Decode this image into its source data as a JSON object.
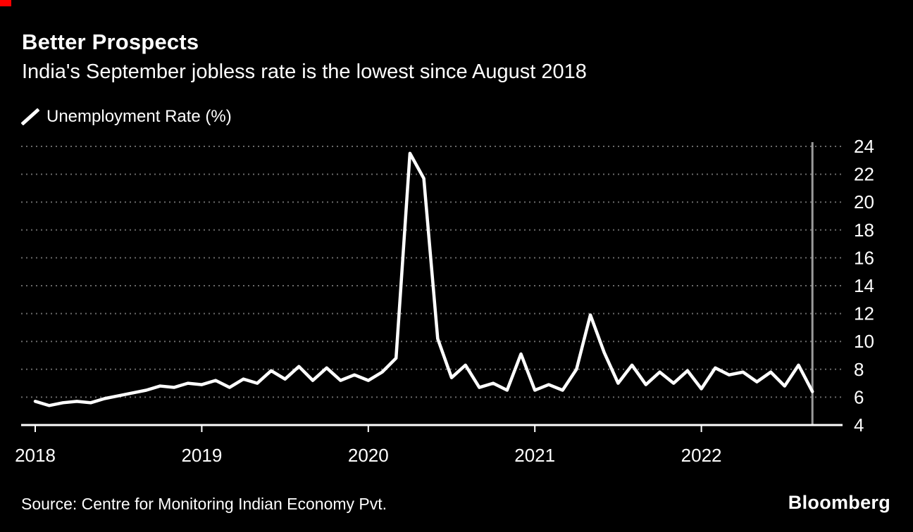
{
  "header": {
    "title": "Better Prospects",
    "subtitle": "India's September jobless rate is the lowest since August 2018"
  },
  "legend": {
    "label": "Unemployment Rate (%)"
  },
  "footer": {
    "source": "Source: Centre for Monitoring Indian Economy Pvt.",
    "brand": "Bloomberg"
  },
  "colors": {
    "background": "#000000",
    "text": "#ffffff",
    "line": "#ffffff",
    "grid": "#6a6a6a",
    "marker_line": "#9b9b9b",
    "accent_red": "#ff0000"
  },
  "chart_data": {
    "type": "line",
    "title": "Better Prospects",
    "subtitle": "India's September jobless rate is the lowest since August 2018",
    "ylabel": "Unemployment Rate (%)",
    "xlabel": "",
    "ylim": [
      4,
      24
    ],
    "y_ticks": [
      4,
      6,
      8,
      10,
      12,
      14,
      16,
      18,
      20,
      22,
      24
    ],
    "grid": "dotted-horizontal",
    "legend_position": "top-left",
    "x_tick_labels": [
      "2018",
      "2019",
      "2020",
      "2021",
      "2022"
    ],
    "x_tick_month_indices": [
      0,
      12,
      24,
      36,
      48
    ],
    "x": [
      "Jan 2018",
      "Feb 2018",
      "Mar 2018",
      "Apr 2018",
      "May 2018",
      "Jun 2018",
      "Jul 2018",
      "Aug 2018",
      "Sep 2018",
      "Oct 2018",
      "Nov 2018",
      "Dec 2018",
      "Jan 2019",
      "Feb 2019",
      "Mar 2019",
      "Apr 2019",
      "May 2019",
      "Jun 2019",
      "Jul 2019",
      "Aug 2019",
      "Sep 2019",
      "Oct 2019",
      "Nov 2019",
      "Dec 2019",
      "Jan 2020",
      "Feb 2020",
      "Mar 2020",
      "Apr 2020",
      "May 2020",
      "Jun 2020",
      "Jul 2020",
      "Aug 2020",
      "Sep 2020",
      "Oct 2020",
      "Nov 2020",
      "Dec 2020",
      "Jan 2021",
      "Feb 2021",
      "Mar 2021",
      "Apr 2021",
      "May 2021",
      "Jun 2021",
      "Jul 2021",
      "Aug 2021",
      "Sep 2021",
      "Oct 2021",
      "Nov 2021",
      "Dec 2021",
      "Jan 2022",
      "Feb 2022",
      "Mar 2022",
      "Apr 2022",
      "May 2022",
      "Jun 2022",
      "Jul 2022",
      "Aug 2022",
      "Sep 2022"
    ],
    "series": [
      {
        "name": "Unemployment Rate (%)",
        "values": [
          5.7,
          5.4,
          5.6,
          5.7,
          5.6,
          5.9,
          6.1,
          6.3,
          6.5,
          6.8,
          6.7,
          7.0,
          6.9,
          7.2,
          6.7,
          7.3,
          7.0,
          7.9,
          7.3,
          8.2,
          7.2,
          8.1,
          7.2,
          7.6,
          7.2,
          7.8,
          8.8,
          23.5,
          21.7,
          10.2,
          7.4,
          8.3,
          6.7,
          7.0,
          6.5,
          9.1,
          6.5,
          6.9,
          6.5,
          8.0,
          11.9,
          9.2,
          7.0,
          8.3,
          6.9,
          7.8,
          7.0,
          7.9,
          6.6,
          8.1,
          7.6,
          7.8,
          7.1,
          7.8,
          6.8,
          8.3,
          6.4
        ]
      }
    ],
    "annotations": [
      "vertical gray marker line at latest data point (Sep 2022)"
    ],
    "source": "Source: Centre for Monitoring Indian Economy Pvt."
  }
}
